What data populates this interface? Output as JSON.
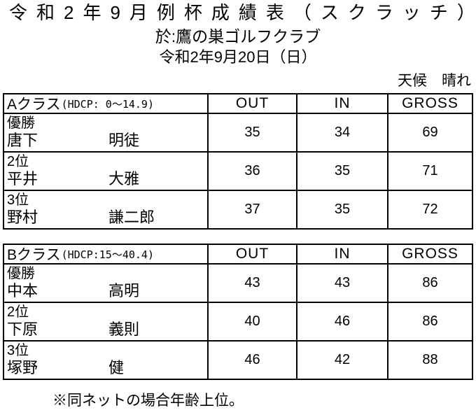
{
  "title": "令和2年9月例杯成績表（スクラッチ）",
  "venue": "於:鷹の巣ゴルフクラブ",
  "event_date": "令和2年9月20日（日）",
  "weather": "天候　晴れ",
  "footnote": "※同ネットの場合年齢上位。",
  "tables": [
    {
      "class_name": "Aクラス",
      "hdcp": "(HDCP: 0～14.9)",
      "columns": [
        "OUT",
        "IN",
        "GROSS"
      ],
      "rows": [
        {
          "rank": "優勝",
          "surname": "唐下",
          "given_name": "明徒",
          "out": "35",
          "in": "34",
          "gross": "69"
        },
        {
          "rank": "2位",
          "surname": "平井",
          "given_name": "大雅",
          "out": "36",
          "in": "35",
          "gross": "71"
        },
        {
          "rank": "3位",
          "surname": "野村",
          "given_name": "謙二郎",
          "out": "37",
          "in": "35",
          "gross": "72"
        }
      ]
    },
    {
      "class_name": "Bクラス",
      "hdcp": "(HDCP:15～40.4)",
      "columns": [
        "OUT",
        "IN",
        "GROSS"
      ],
      "rows": [
        {
          "rank": "優勝",
          "surname": "中本",
          "given_name": "高明",
          "out": "43",
          "in": "43",
          "gross": "86"
        },
        {
          "rank": "2位",
          "surname": "下原",
          "given_name": "義則",
          "out": "40",
          "in": "46",
          "gross": "86"
        },
        {
          "rank": "3位",
          "surname": "塚野",
          "given_name": "健",
          "out": "46",
          "in": "42",
          "gross": "88"
        }
      ]
    }
  ]
}
